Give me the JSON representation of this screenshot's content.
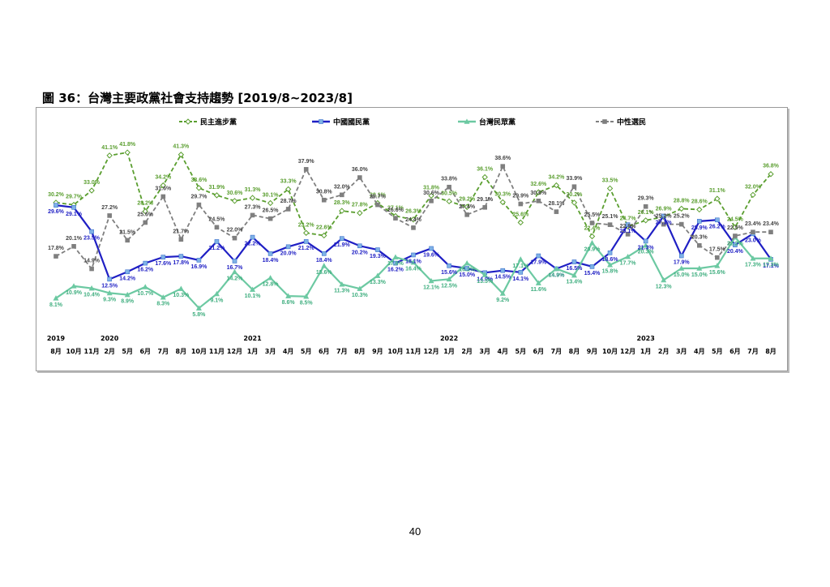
{
  "figure_title": "圖 36：台灣主要政黨社會支持趨勢 [2019/8~2023/8]",
  "page_number": "40",
  "chart_data": {
    "type": "line",
    "title": "",
    "x": [
      "8月",
      "10月",
      "11月",
      "2月",
      "5月",
      "6月",
      "7月",
      "8月",
      "10月",
      "11月",
      "12月",
      "1月",
      "3月",
      "4月",
      "5月",
      "6月",
      "7月",
      "8月",
      "9月",
      "10月",
      "11月",
      "12月",
      "1月",
      "2月",
      "3月",
      "4月",
      "5月",
      "6月",
      "7月",
      "8月",
      "9月",
      "10月",
      "12月",
      "1月",
      "2月",
      "3月",
      "4月",
      "5月",
      "6月",
      "7月",
      "8月"
    ],
    "year_labels": [
      {
        "label": "2019",
        "index": 0
      },
      {
        "label": "2020",
        "index": 3
      },
      {
        "label": "2021",
        "index": 11
      },
      {
        "label": "2022",
        "index": 22
      },
      {
        "label": "2023",
        "index": 33
      }
    ],
    "ylim": [
      0,
      45
    ],
    "grid": false,
    "legend_position": "top",
    "series": [
      {
        "name": "民主進步黨",
        "color": "#5a9e2f",
        "dash": true,
        "marker": "diamond",
        "values": [
          30.2,
          29.7,
          33.0,
          41.1,
          41.8,
          28.2,
          34.2,
          41.3,
          33.6,
          31.9,
          30.6,
          31.3,
          30.1,
          33.3,
          23.2,
          22.6,
          28.3,
          27.8,
          30.1,
          27.1,
          26.3,
          31.8,
          30.5,
          29.2,
          36.1,
          30.3,
          25.6,
          32.6,
          34.2,
          30.2,
          22.4,
          33.5,
          24.7,
          26.1,
          26.9,
          28.8,
          28.6,
          31.1,
          24.5,
          32.0,
          36.8
        ]
      },
      {
        "name": "中國國民黨",
        "color": "#1f1fc4",
        "dash": false,
        "marker": "square",
        "values": [
          29.6,
          29.1,
          23.5,
          12.5,
          14.2,
          16.2,
          17.6,
          17.8,
          16.9,
          21.2,
          16.7,
          22.2,
          18.4,
          20.0,
          21.2,
          18.4,
          21.9,
          20.2,
          19.3,
          16.2,
          18.1,
          19.6,
          15.6,
          15.0,
          14.0,
          14.5,
          14.1,
          17.9,
          14.9,
          16.5,
          15.4,
          18.6,
          25.1,
          21.3,
          27.1,
          17.9,
          25.9,
          26.2,
          20.4,
          23.0,
          17.1
        ]
      },
      {
        "name": "台灣民眾黨",
        "color": "#6cc9a2",
        "dash": false,
        "marker": "triangle",
        "values": [
          8.1,
          10.9,
          10.4,
          9.3,
          8.9,
          10.7,
          8.3,
          10.3,
          5.8,
          9.1,
          14.2,
          10.1,
          12.8,
          8.6,
          8.5,
          15.6,
          11.3,
          10.3,
          13.3,
          17.6,
          16.4,
          12.1,
          12.5,
          16.2,
          13.5,
          9.2,
          17.1,
          11.6,
          14.9,
          13.4,
          20.9,
          15.8,
          17.7,
          20.3,
          12.3,
          15.0,
          15.0,
          15.6,
          22.2,
          17.3,
          17.3
        ]
      },
      {
        "name": "中性選民",
        "color": "#7f7f7f",
        "dash": true,
        "marker": "square",
        "values": [
          17.8,
          20.1,
          14.9,
          27.2,
          21.5,
          25.6,
          31.6,
          21.7,
          29.7,
          24.5,
          22.0,
          27.3,
          26.5,
          28.7,
          37.9,
          30.8,
          32.0,
          36.0,
          29.7,
          26.6,
          24.4,
          30.6,
          33.8,
          27.4,
          29.1,
          38.6,
          29.9,
          30.6,
          28.1,
          33.9,
          25.5,
          25.1,
          22.9,
          29.3,
          25.2,
          25.2,
          20.3,
          17.5,
          22.5,
          23.4,
          23.4
        ]
      }
    ]
  }
}
